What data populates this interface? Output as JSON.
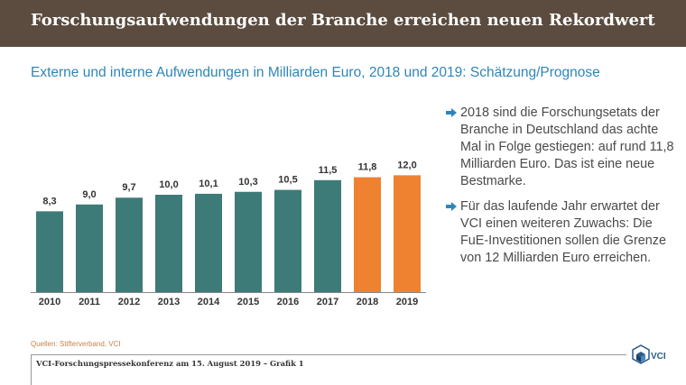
{
  "header": {
    "title": "Forschungsaufwendungen der Branche erreichen neuen Rekordwert",
    "subtitle": "Externe und interne Aufwendungen in Milliarden Euro, 2018 und 2019: Schätzung/Prognose"
  },
  "chart_data": {
    "type": "bar",
    "categories": [
      "2010",
      "2011",
      "2012",
      "2013",
      "2014",
      "2015",
      "2016",
      "2017",
      "2018",
      "2019"
    ],
    "values": [
      8.3,
      9.0,
      9.7,
      10.0,
      10.1,
      10.3,
      10.5,
      11.5,
      11.8,
      12.0
    ],
    "value_labels": [
      "8,3",
      "9,0",
      "9,7",
      "10,0",
      "10,1",
      "10,3",
      "10,5",
      "11,5",
      "11,8",
      "12,0"
    ],
    "estimate_flags": [
      false,
      false,
      false,
      false,
      false,
      false,
      false,
      false,
      true,
      true
    ],
    "colors": {
      "actual": "#3d7b78",
      "estimate": "#ee8231"
    },
    "ylim": [
      0,
      12.5
    ],
    "grid": false,
    "title": "",
    "xlabel": "",
    "ylabel": ""
  },
  "bullets": [
    "2018 sind die Forschungsetats der Branche in Deutschland das achte Mal in Folge gestiegen: auf rund 11,8 Milliarden Euro. Das ist eine neue Bestmarke.",
    "Für das laufende Jahr erwartet der VCI einen weiteren Zuwachs: Die FuE-Investi­tionen sollen die Grenze von 12 Milliarden Euro erreichen."
  ],
  "source": "Quellen: Stifterverband, VCI",
  "footer": "VCI-Forschungspressekonferenz am 15. August 2019 – Grafik 1",
  "logo": {
    "text": "VCI",
    "icon": "vci-logo-icon"
  },
  "colors": {
    "header_bg": "#5b4c3f",
    "subtitle": "#2e86b7",
    "bullet_arrow": "#2e86b7",
    "source": "#c8844a"
  }
}
